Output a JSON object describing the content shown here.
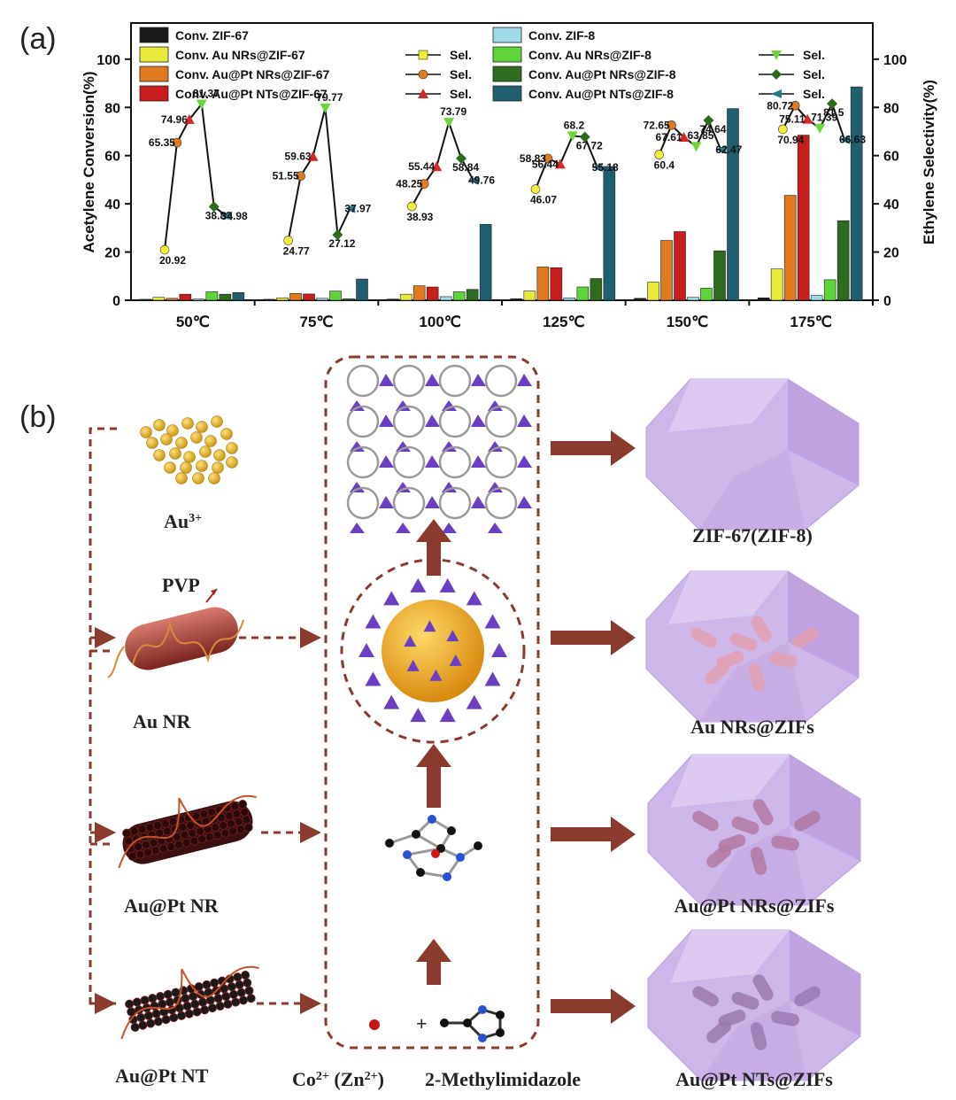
{
  "panel_a_label": "(a)",
  "panel_b_label": "(b)",
  "chart_data": {
    "type": "bar",
    "categories": [
      "50℃",
      "75℃",
      "100℃",
      "125℃",
      "150℃",
      "175℃"
    ],
    "ylabel": "Acetylene Conversion(%)",
    "y2label": "Ethylene Selectivity(%)",
    "ylim": [
      0,
      115
    ],
    "y2lim": [
      0,
      115
    ],
    "yticks": [
      0,
      20,
      40,
      60,
      80,
      100
    ],
    "y2ticks": [
      0,
      20,
      40,
      60,
      80,
      100
    ],
    "series": [
      {
        "name": "Conv. ZIF-67",
        "color": "#1a1a1a",
        "values": [
          0.4,
          0.4,
          0.5,
          0.6,
          0.8,
          1.0
        ]
      },
      {
        "name": "Conv. Au NRs@ZIF-67",
        "color": "#e8ea3a",
        "values": [
          1.2,
          1.0,
          2.5,
          3.8,
          7.5,
          13.0
        ]
      },
      {
        "name": "Conv. Au@Pt NRs@ZIF-67",
        "color": "#e07a1e",
        "values": [
          0.8,
          2.8,
          6.0,
          13.8,
          24.8,
          43.5
        ]
      },
      {
        "name": "Conv. Au@Pt NTs@ZIF-67",
        "color": "#c81e1e",
        "values": [
          2.5,
          2.6,
          5.5,
          13.5,
          28.5,
          68.5
        ]
      },
      {
        "name": "Conv. ZIF-8",
        "color": "#9fdbe6",
        "values": [
          0.5,
          0.8,
          1.5,
          1.0,
          1.2,
          2.0
        ]
      },
      {
        "name": "Conv. Au NRs@ZIF-8",
        "color": "#5fd33a",
        "values": [
          3.5,
          3.8,
          3.5,
          5.5,
          5.0,
          8.5
        ]
      },
      {
        "name": "Conv. Au@Pt NRs@ZIF-8",
        "color": "#2f6b1e",
        "values": [
          2.5,
          0.6,
          4.5,
          9.0,
          20.5,
          33.0
        ]
      },
      {
        "name": "Conv. Au@Pt NTs@ZIF-8",
        "color": "#1f5f6e",
        "values": [
          3.2,
          8.8,
          31.5,
          55.5,
          79.5,
          88.5
        ]
      }
    ],
    "selectivity": [
      {
        "group": 0,
        "points": [
          {
            "v": 20.92,
            "label": "20.92",
            "color": "#f2ee3a",
            "marker": "circle"
          },
          {
            "v": 65.35,
            "label": "65.35",
            "color": "#e07a1e",
            "marker": "circle"
          },
          {
            "v": 74.96,
            "label": "74.96",
            "color": "#d42a2a",
            "marker": "triangle"
          },
          {
            "v": 81.37,
            "label": "81.37",
            "color": "#6ed43a",
            "marker": "down"
          },
          {
            "v": 38.83,
            "label": "38.83",
            "color": "#2f6b1e",
            "marker": "diamond"
          },
          {
            "v": 34.98,
            "label": "34.98",
            "color": "#2a7a8c",
            "marker": "left"
          }
        ]
      },
      {
        "group": 1,
        "points": [
          {
            "v": 24.77,
            "label": "24.77",
            "color": "#f2ee3a",
            "marker": "circle"
          },
          {
            "v": 51.55,
            "label": "51.55",
            "color": "#e07a1e",
            "marker": "circle"
          },
          {
            "v": 59.63,
            "label": "59.63",
            "color": "#d42a2a",
            "marker": "triangle"
          },
          {
            "v": 79.77,
            "label": "79.77",
            "color": "#6ed43a",
            "marker": "down"
          },
          {
            "v": 27.12,
            "label": "27.12",
            "color": "#2f6b1e",
            "marker": "diamond"
          },
          {
            "v": 37.97,
            "label": "37.97",
            "color": "#2a7a8c",
            "marker": "left"
          }
        ]
      },
      {
        "group": 2,
        "points": [
          {
            "v": 38.93,
            "label": "38.93",
            "color": "#f2ee3a",
            "marker": "circle"
          },
          {
            "v": 48.25,
            "label": "48.25",
            "color": "#e07a1e",
            "marker": "circle"
          },
          {
            "v": 55.44,
            "label": "55.44",
            "color": "#d42a2a",
            "marker": "triangle"
          },
          {
            "v": 73.79,
            "label": "73.79",
            "color": "#6ed43a",
            "marker": "down"
          },
          {
            "v": 58.84,
            "label": "58.84",
            "color": "#2f6b1e",
            "marker": "diamond"
          },
          {
            "v": 49.76,
            "label": "49.76",
            "color": "#2a7a8c",
            "marker": "left"
          }
        ]
      },
      {
        "group": 3,
        "points": [
          {
            "v": 46.07,
            "label": "46.07",
            "color": "#f2ee3a",
            "marker": "circle"
          },
          {
            "v": 58.83,
            "label": "58.83",
            "color": "#e07a1e",
            "marker": "circle"
          },
          {
            "v": 56.44,
            "label": "56.44",
            "color": "#d42a2a",
            "marker": "triangle"
          },
          {
            "v": 68.2,
            "label": "68.2",
            "color": "#6ed43a",
            "marker": "down"
          },
          {
            "v": 67.72,
            "label": "67.72",
            "color": "#2f6b1e",
            "marker": "diamond"
          },
          {
            "v": 55.18,
            "label": "55.18",
            "color": "#2a7a8c",
            "marker": "left"
          }
        ]
      },
      {
        "group": 4,
        "points": [
          {
            "v": 60.4,
            "label": "60.4",
            "color": "#f2ee3a",
            "marker": "circle"
          },
          {
            "v": 72.65,
            "label": "72.65",
            "color": "#e07a1e",
            "marker": "circle"
          },
          {
            "v": 67.61,
            "label": "67.61",
            "color": "#d42a2a",
            "marker": "triangle"
          },
          {
            "v": 63.85,
            "label": "63.85",
            "color": "#6ed43a",
            "marker": "down"
          },
          {
            "v": 74.64,
            "label": "74.64",
            "color": "#2f6b1e",
            "marker": "diamond"
          },
          {
            "v": 62.47,
            "label": "62.47",
            "color": "#2a7a8c",
            "marker": "left"
          }
        ]
      },
      {
        "group": 5,
        "points": [
          {
            "v": 70.94,
            "label": "70.94",
            "color": "#f2ee3a",
            "marker": "circle"
          },
          {
            "v": 80.72,
            "label": "80.72",
            "color": "#e07a1e",
            "marker": "circle"
          },
          {
            "v": 75.11,
            "label": "75.11",
            "color": "#d42a2a",
            "marker": "triangle"
          },
          {
            "v": 71.39,
            "label": "71.39",
            "color": "#6ed43a",
            "marker": "down"
          },
          {
            "v": 81.5,
            "label": "81.5",
            "color": "#2f6b1e",
            "marker": "diamond"
          },
          {
            "v": 66.63,
            "label": "66.63",
            "color": "#2a7a8c",
            "marker": "left"
          }
        ]
      }
    ],
    "legend": [
      {
        "label": "Conv. ZIF-67",
        "swatch": "#1a1a1a"
      },
      {
        "label": "Conv. Au NRs@ZIF-67",
        "swatch": "#e8ea3a",
        "sel": "Sel.",
        "sel_color": "#f2ee3a",
        "sel_marker": "square"
      },
      {
        "label": "Conv. Au@Pt NRs@ZIF-67",
        "swatch": "#e07a1e",
        "sel": "Sel.",
        "sel_color": "#e07a1e",
        "sel_marker": "circle"
      },
      {
        "label": "Conv. Au@Pt NTs@ZIF-67",
        "swatch": "#c81e1e",
        "sel": "Sel.",
        "sel_color": "#d42a2a",
        "sel_marker": "triangle"
      },
      {
        "label": "Conv. ZIF-8",
        "swatch": "#9fdbe6"
      },
      {
        "label": "Conv. Au NRs@ZIF-8",
        "swatch": "#5fd33a",
        "sel": "Sel.",
        "sel_color": "#6ed43a",
        "sel_marker": "down"
      },
      {
        "label": "Conv. Au@Pt NRs@ZIF-8",
        "swatch": "#2f6b1e",
        "sel": "Sel.",
        "sel_color": "#2f6b1e",
        "sel_marker": "diamond"
      },
      {
        "label": "Conv. Au@Pt NTs@ZIF-8",
        "swatch": "#1f5f6e",
        "sel": "Sel.",
        "sel_color": "#2a7a8c",
        "sel_marker": "left"
      }
    ]
  },
  "diagram": {
    "labels": {
      "au3": "Au",
      "au3_sup": "3+",
      "pvp": "PVP",
      "au_nr": "Au NR",
      "aupt_nr": "Au@Pt NR",
      "aupt_nt": "Au@Pt NT",
      "co": "Co",
      "co_sup": "2+",
      "zn": " (Zn",
      "zn_sup": "2+",
      "zn_close": ")",
      "plus": "+",
      "methylimidazole": "2-Methylimidazole",
      "zif": "ZIF-67(ZIF-8)",
      "au_nrs_zifs": "Au NRs@ZIFs",
      "aupt_nrs_zifs": "Au@Pt NRs@ZIFs",
      "aupt_nts_zifs": "Au@Pt NTs@ZIFs"
    },
    "colors": {
      "arrow": "#8b3a2e",
      "crystal": "#cdb6e8",
      "gold": "#f0b42a",
      "rod": "#b34040",
      "framework": "#6a3fc4"
    }
  }
}
